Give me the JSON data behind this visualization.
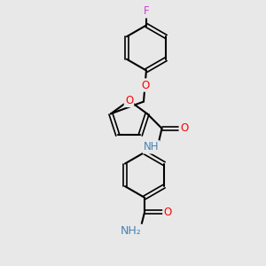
{
  "bg_color": "#e8e8e8",
  "bond_color": "#000000",
  "atom_colors": {
    "O": "#ff0000",
    "N": "#4682b4",
    "F": "#cc44cc",
    "C": "#000000",
    "H": "#4682b4"
  },
  "figsize": [
    3.0,
    3.0
  ],
  "dpi": 100
}
